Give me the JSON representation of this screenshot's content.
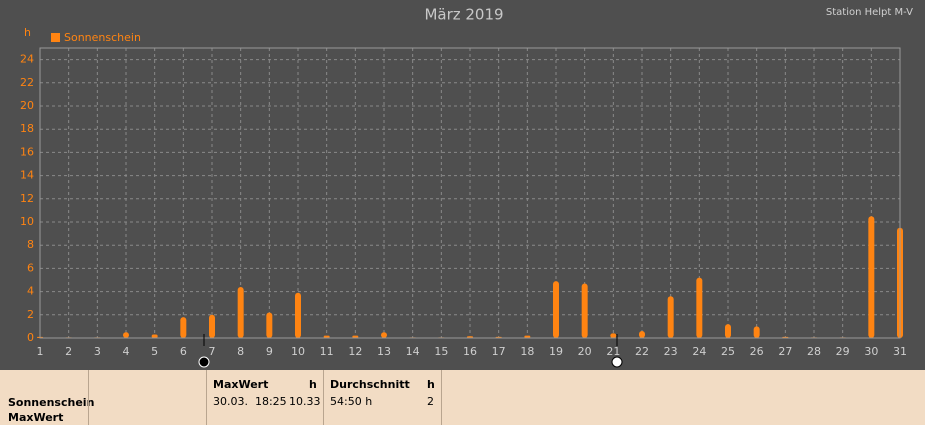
{
  "chart_data": {
    "type": "bar",
    "title": "März 2019",
    "subtitle": "Station Helpt M-V",
    "y_label": "h",
    "categories": [
      "1",
      "2",
      "3",
      "4",
      "5",
      "6",
      "7",
      "8",
      "9",
      "10",
      "11",
      "12",
      "13",
      "14",
      "15",
      "16",
      "17",
      "18",
      "19",
      "20",
      "21",
      "22",
      "23",
      "24",
      "25",
      "26",
      "27",
      "28",
      "29",
      "30",
      "31"
    ],
    "series": [
      {
        "name": "Sonnenschein",
        "color": "#ff8412",
        "values": [
          0.1,
          0.05,
          0.05,
          0.5,
          0.3,
          1.8,
          2.0,
          4.4,
          2.2,
          3.9,
          0.2,
          0.2,
          0.5,
          0.05,
          0.05,
          0.15,
          0.1,
          0.2,
          4.9,
          4.7,
          0.4,
          0.6,
          3.6,
          5.2,
          1.2,
          1.0,
          0.1,
          0.05,
          0.05,
          10.5,
          9.5
        ]
      }
    ],
    "ylim": [
      0,
      25
    ],
    "yticks": [
      0,
      2,
      4,
      6,
      8,
      10,
      12,
      14,
      16,
      18,
      20,
      22,
      24
    ],
    "grid": true,
    "legend": "top-left"
  },
  "table": {
    "row_labels": [
      "Sonnenschein",
      "MaxWert"
    ],
    "groups": [
      {
        "header": "MaxWert",
        "unit": "h",
        "cells": [
          "30.03.  18:25",
          "10.33"
        ]
      },
      {
        "header": "Durchschnitt",
        "unit": "h",
        "cells": [
          "54:50 h",
          "2"
        ]
      }
    ]
  }
}
